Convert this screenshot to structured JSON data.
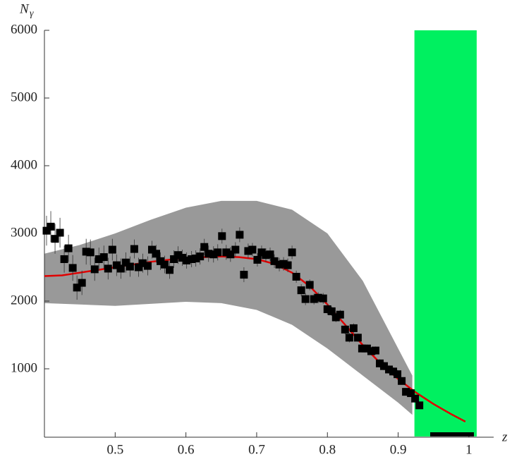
{
  "chart_data": {
    "type": "scatter",
    "ylabel": "N",
    "ylabel_subscript": "γ",
    "xlabel": "z",
    "xlim": [
      0.4,
      1.035
    ],
    "ylim": [
      0,
      6000
    ],
    "xticks": [
      0.5,
      0.6,
      0.7,
      0.8,
      0.9,
      1
    ],
    "yticks": [
      1000,
      2000,
      3000,
      4000,
      5000,
      6000
    ],
    "band": {
      "color": "#00f060",
      "x": [
        0.923,
        1.011
      ],
      "top": 6000
    },
    "uncertainty": {
      "color": "#999999",
      "x": [
        0.4,
        0.45,
        0.5,
        0.55,
        0.6,
        0.65,
        0.7,
        0.75,
        0.8,
        0.85,
        0.9,
        0.92
      ],
      "upper": [
        2700,
        2830,
        3000,
        3200,
        3380,
        3480,
        3480,
        3350,
        3000,
        2300,
        1300,
        900
      ],
      "lower": [
        1970,
        1950,
        1930,
        1960,
        1990,
        1970,
        1870,
        1650,
        1300,
        900,
        500,
        320
      ]
    },
    "model": {
      "color": "#e00000",
      "x": [
        0.4,
        0.425,
        0.45,
        0.475,
        0.5,
        0.525,
        0.55,
        0.575,
        0.6,
        0.625,
        0.65,
        0.675,
        0.7,
        0.725,
        0.75,
        0.775,
        0.8,
        0.825,
        0.85,
        0.875,
        0.9,
        0.925,
        0.95,
        0.975,
        0.995
      ],
      "values": [
        2370,
        2380,
        2420,
        2460,
        2500,
        2540,
        2580,
        2610,
        2630,
        2650,
        2660,
        2650,
        2620,
        2550,
        2420,
        2220,
        1950,
        1650,
        1350,
        1080,
        850,
        650,
        480,
        330,
        220
      ]
    },
    "series": [
      {
        "color": "#000000",
        "x": [
          0.403,
          0.409,
          0.415,
          0.422,
          0.428,
          0.434,
          0.44,
          0.446,
          0.453,
          0.459,
          0.465,
          0.471,
          0.477,
          0.484,
          0.49,
          0.496,
          0.502,
          0.508,
          0.515,
          0.521,
          0.527,
          0.533,
          0.539,
          0.546,
          0.552,
          0.558,
          0.564,
          0.57,
          0.577,
          0.583,
          0.589,
          0.595,
          0.601,
          0.608,
          0.614,
          0.62,
          0.626,
          0.632,
          0.639,
          0.645,
          0.651,
          0.657,
          0.663,
          0.67,
          0.676,
          0.682,
          0.688,
          0.694,
          0.701,
          0.707,
          0.713,
          0.719,
          0.725,
          0.732,
          0.738,
          0.744,
          0.75,
          0.756,
          0.763,
          0.769,
          0.775,
          0.781,
          0.787,
          0.794,
          0.8,
          0.806,
          0.812,
          0.818,
          0.825,
          0.831,
          0.837,
          0.843,
          0.849,
          0.856,
          0.862,
          0.868,
          0.874,
          0.88,
          0.887,
          0.893,
          0.899,
          0.905,
          0.911,
          0.918,
          0.924,
          0.93
        ],
        "values": [
          3040,
          3100,
          2920,
          3010,
          2620,
          2780,
          2490,
          2200,
          2270,
          2730,
          2720,
          2470,
          2620,
          2650,
          2480,
          2760,
          2530,
          2480,
          2570,
          2510,
          2770,
          2500,
          2560,
          2520,
          2760,
          2700,
          2590,
          2540,
          2460,
          2620,
          2680,
          2640,
          2600,
          2620,
          2630,
          2660,
          2800,
          2700,
          2690,
          2720,
          2960,
          2720,
          2690,
          2760,
          2980,
          2390,
          2740,
          2760,
          2610,
          2720,
          2680,
          2690,
          2590,
          2540,
          2550,
          2530,
          2720,
          2360,
          2160,
          2030,
          2240,
          2030,
          2050,
          2040,
          1880,
          1850,
          1760,
          1800,
          1580,
          1460,
          1600,
          1460,
          1300,
          1300,
          1260,
          1270,
          1080,
          1040,
          990,
          960,
          920,
          820,
          660,
          640,
          560,
          460
        ],
        "errors": [
          220,
          230,
          220,
          220,
          200,
          200,
          190,
          180,
          180,
          190,
          190,
          170,
          170,
          170,
          160,
          160,
          160,
          150,
          150,
          150,
          140,
          140,
          140,
          140,
          130,
          130,
          130,
          130,
          130,
          130,
          130,
          120,
          120,
          120,
          120,
          120,
          120,
          120,
          120,
          120,
          110,
          110,
          110,
          110,
          110,
          110,
          110,
          100,
          100,
          100,
          100,
          100,
          100,
          100,
          100,
          100,
          100,
          90,
          90,
          90,
          80,
          80,
          80,
          80,
          80,
          70,
          70,
          70,
          70,
          70,
          70,
          60,
          60,
          60,
          60,
          60,
          60,
          60,
          60,
          60,
          60,
          50,
          50,
          50,
          50,
          50
        ]
      }
    ]
  }
}
